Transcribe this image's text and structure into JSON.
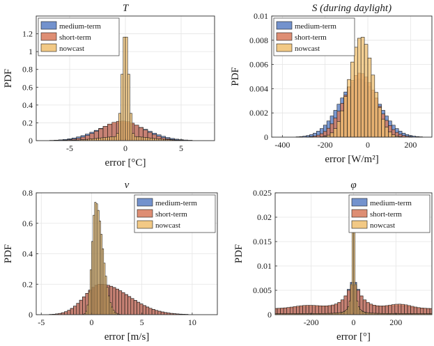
{
  "colors": {
    "medium_term": "#5b7fc4",
    "short_term": "#d87a5c",
    "nowcast": "#f0c070",
    "grid": "#e4e4e4",
    "axis": "#2a2a2a"
  },
  "chart_data": [
    {
      "type": "histogram",
      "title": "T",
      "subtitle": "",
      "xlabel": "error [°C]",
      "ylabel": "PDF",
      "xlim": [
        -8,
        8
      ],
      "ylim": [
        0,
        1.4
      ],
      "xticks": [
        -5,
        0,
        5
      ],
      "xtick_labels": [
        "-5",
        "0",
        "5"
      ],
      "yticks": [
        0,
        0.2,
        0.4,
        0.6,
        0.8,
        1,
        1.2
      ],
      "ytick_labels": [
        "0",
        "0.2",
        "0.4",
        "0.6",
        "0.8",
        "1",
        "1.2"
      ],
      "grid": true,
      "legend_position": "top-left",
      "series": [
        {
          "name": "medium-term",
          "kind": "normal",
          "mean": -0.3,
          "sd": 2.2,
          "peak": 0.2,
          "bin_width": 0.4
        },
        {
          "name": "short-term",
          "kind": "normal",
          "mean": -0.3,
          "sd": 1.9,
          "peak": 0.22,
          "bin_width": 0.4
        },
        {
          "name": "nowcast",
          "kind": "spike",
          "mean": 0,
          "sd": 0.3,
          "peak": 1.23,
          "bin_width": 0.2,
          "base_sd": 2.2,
          "base": 0.05
        }
      ]
    },
    {
      "type": "histogram",
      "title": "S (during daylight)",
      "subtitle": "",
      "xlabel": "error [W/m²]",
      "ylabel": "PDF",
      "xlim": [
        -450,
        300
      ],
      "ylim": [
        0,
        0.01
      ],
      "xticks": [
        -400,
        -200,
        0,
        200
      ],
      "xtick_labels": [
        "-400",
        "-200",
        "0",
        "200"
      ],
      "yticks": [
        0,
        0.002,
        0.004,
        0.006,
        0.008,
        0.01
      ],
      "ytick_labels": [
        "0",
        "0.002",
        "0.004",
        "0.006",
        "0.008",
        "0.01"
      ],
      "grid": true,
      "legend_position": "top-left",
      "series": [
        {
          "name": "medium-term",
          "kind": "normal",
          "mean": -40,
          "sd": 90,
          "peak": 0.0048,
          "bin_width": 16
        },
        {
          "name": "short-term",
          "kind": "normal",
          "mean": -35,
          "sd": 75,
          "peak": 0.0053,
          "bin_width": 16
        },
        {
          "name": "nowcast",
          "kind": "normal",
          "mean": -30,
          "sd": 55,
          "peak": 0.0083,
          "bin_width": 16
        }
      ]
    },
    {
      "type": "histogram",
      "title": "v",
      "subtitle": "",
      "xlabel": "error [m/s]",
      "ylabel": "PDF",
      "xlim": [
        -5.5,
        12.5
      ],
      "ylim": [
        0,
        0.8
      ],
      "xticks": [
        -5,
        0,
        5,
        10
      ],
      "xtick_labels": [
        "-5",
        "0",
        "5",
        "10"
      ],
      "yticks": [
        0,
        0.2,
        0.4,
        0.6,
        0.8
      ],
      "ytick_labels": [
        "0",
        "0.2",
        "0.4",
        "0.6",
        "0.8"
      ],
      "grid": true,
      "legend_position": "top-right",
      "series": [
        {
          "name": "medium-term",
          "kind": "skew",
          "mean": 0.9,
          "sd_left": 1.6,
          "sd_right": 2.8,
          "peak": 0.2,
          "bin_width": 0.3
        },
        {
          "name": "short-term",
          "kind": "skew",
          "mean": 0.9,
          "sd_left": 1.6,
          "sd_right": 2.8,
          "peak": 0.2,
          "bin_width": 0.3
        },
        {
          "name": "nowcast",
          "kind": "skew",
          "mean": 0.4,
          "sd_left": 0.35,
          "sd_right": 0.7,
          "peak": 0.74,
          "bin_width": 0.15
        }
      ]
    },
    {
      "type": "histogram",
      "title": "φ",
      "subtitle": "",
      "xlabel": "error [°]",
      "ylabel": "PDF",
      "xlim": [
        -370,
        370
      ],
      "ylim": [
        0,
        0.025
      ],
      "xticks": [
        -200,
        0,
        200
      ],
      "xtick_labels": [
        "-200",
        "0",
        "200"
      ],
      "yticks": [
        0,
        0.005,
        0.01,
        0.015,
        0.02,
        0.025
      ],
      "ytick_labels": [
        "0",
        "0.005",
        "0.01",
        "0.015",
        "0.02",
        "0.025"
      ],
      "grid": true,
      "legend_position": "top-right",
      "series": [
        {
          "name": "medium-term",
          "kind": "cauchy",
          "mean": 0,
          "scale": 35,
          "peak": 0.0058,
          "floor": 0.0011,
          "bump": 0.0006,
          "bin_width": 15
        },
        {
          "name": "short-term",
          "kind": "cauchy",
          "mean": 0,
          "scale": 40,
          "peak": 0.005,
          "floor": 0.0012,
          "bump": 0.0008,
          "bin_width": 15
        },
        {
          "name": "nowcast",
          "kind": "cauchy",
          "mean": 0,
          "scale": 6,
          "peak": 0.0248,
          "floor": 0.0002,
          "bump": 0,
          "bin_width": 7
        }
      ]
    }
  ]
}
